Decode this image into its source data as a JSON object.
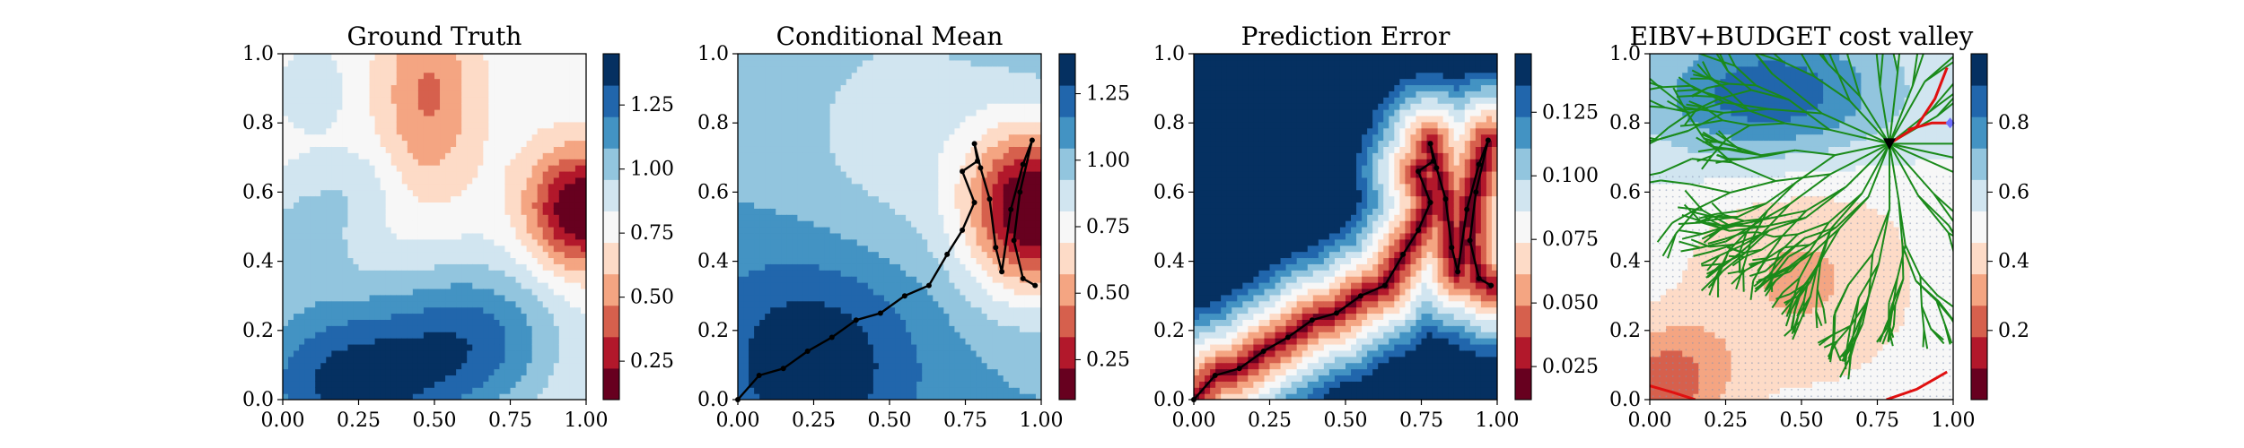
{
  "colors": {
    "rdbu_11": [
      "#67001f",
      "#b2182b",
      "#d6604d",
      "#f4a582",
      "#fddbc7",
      "#f7f7f7",
      "#d1e5f0",
      "#92c5de",
      "#4393c3",
      "#2166ac",
      "#053061"
    ],
    "path": "#000000",
    "tree": "#1a8a1a",
    "boundary": "#e01010",
    "candidate": "#7070ff"
  },
  "chart_data": [
    {
      "type": "heatmap",
      "title": "Ground Truth",
      "xlabel": "",
      "ylabel": "",
      "xlim": [
        0,
        1
      ],
      "ylim": [
        0,
        1
      ],
      "xticks": [
        "0.00",
        "0.25",
        "0.50",
        "0.75",
        "1.00"
      ],
      "yticks": [
        "0.0",
        "0.2",
        "0.4",
        "0.6",
        "0.8",
        "1.0"
      ],
      "field": [
        {
          "kind": "base",
          "value": 0.78
        },
        {
          "kind": "bump",
          "x": 0.98,
          "y": 0.55,
          "sx": 0.12,
          "sy": 0.12,
          "amp": -0.72
        },
        {
          "kind": "bump",
          "x": 0.48,
          "y": 0.88,
          "sx": 0.11,
          "sy": 0.2,
          "amp": -0.33
        },
        {
          "kind": "bump",
          "x": 0.22,
          "y": 0.05,
          "sx": 0.26,
          "sy": 0.18,
          "amp": 0.6
        },
        {
          "kind": "bump",
          "x": 0.65,
          "y": 0.18,
          "sx": 0.2,
          "sy": 0.16,
          "amp": 0.4
        },
        {
          "kind": "bump",
          "x": 0.07,
          "y": 0.48,
          "sx": 0.12,
          "sy": 0.12,
          "amp": 0.22
        },
        {
          "kind": "bump",
          "x": 0.25,
          "y": 0.62,
          "sx": 0.1,
          "sy": 0.08,
          "amp": 0.12
        },
        {
          "kind": "bump",
          "x": 0.1,
          "y": 0.9,
          "sx": 0.08,
          "sy": 0.08,
          "amp": 0.15
        }
      ],
      "colorbar": {
        "cmap": "rdbu_11",
        "vmin": 0.1,
        "vmax": 1.45,
        "ticks": [
          {
            "value": 0.25,
            "label": "0.25"
          },
          {
            "value": 0.5,
            "label": "0.50"
          },
          {
            "value": 0.75,
            "label": "0.75"
          },
          {
            "value": 1.0,
            "label": "1.00"
          },
          {
            "value": 1.25,
            "label": "1.25"
          }
        ]
      }
    },
    {
      "type": "heatmap",
      "title": "Conditional Mean",
      "xlabel": "",
      "ylabel": "",
      "xlim": [
        0,
        1
      ],
      "ylim": [
        0,
        1
      ],
      "xticks": [
        "0.00",
        "0.25",
        "0.50",
        "0.75",
        "1.00"
      ],
      "yticks": [
        "0.0",
        "0.2",
        "0.4",
        "0.6",
        "0.8",
        "1.0"
      ],
      "field": [
        {
          "kind": "base",
          "value": 1.05
        },
        {
          "kind": "bump",
          "x": 0.97,
          "y": 0.55,
          "sx": 0.15,
          "sy": 0.17,
          "amp": -0.95
        },
        {
          "kind": "bump",
          "x": 0.25,
          "y": 0.12,
          "sx": 0.25,
          "sy": 0.22,
          "amp": 0.35
        },
        {
          "kind": "bump",
          "x": 0.55,
          "y": 0.75,
          "sx": 0.3,
          "sy": 0.3,
          "amp": -0.18
        }
      ],
      "path": [
        [
          0.0,
          0.0
        ],
        [
          0.07,
          0.07
        ],
        [
          0.15,
          0.09
        ],
        [
          0.23,
          0.14
        ],
        [
          0.31,
          0.18
        ],
        [
          0.39,
          0.23
        ],
        [
          0.47,
          0.25
        ],
        [
          0.55,
          0.3
        ],
        [
          0.63,
          0.33
        ],
        [
          0.69,
          0.42
        ],
        [
          0.74,
          0.49
        ],
        [
          0.78,
          0.57
        ],
        [
          0.74,
          0.66
        ],
        [
          0.79,
          0.69
        ],
        [
          0.78,
          0.74
        ],
        [
          0.8,
          0.67
        ],
        [
          0.83,
          0.58
        ],
        [
          0.85,
          0.44
        ],
        [
          0.87,
          0.37
        ],
        [
          0.9,
          0.55
        ],
        [
          0.94,
          0.68
        ],
        [
          0.97,
          0.75
        ],
        [
          0.93,
          0.6
        ],
        [
          0.91,
          0.46
        ],
        [
          0.94,
          0.35
        ],
        [
          0.98,
          0.33
        ]
      ],
      "colorbar": {
        "cmap": "rdbu_11",
        "vmin": 0.1,
        "vmax": 1.4,
        "ticks": [
          {
            "value": 0.25,
            "label": "0.25"
          },
          {
            "value": 0.5,
            "label": "0.50"
          },
          {
            "value": 0.75,
            "label": "0.75"
          },
          {
            "value": 1.0,
            "label": "1.00"
          },
          {
            "value": 1.25,
            "label": "1.25"
          }
        ]
      }
    },
    {
      "type": "heatmap",
      "title": "Prediction Error",
      "xlabel": "",
      "ylabel": "",
      "xlim": [
        0,
        1
      ],
      "ylim": [
        0,
        1
      ],
      "xticks": [
        "0.00",
        "0.25",
        "0.50",
        "0.75",
        "1.00"
      ],
      "yticks": [
        "0.0",
        "0.2",
        "0.4",
        "0.6",
        "0.8",
        "1.0"
      ],
      "field": [
        {
          "kind": "pathdist",
          "vmin_out": 0.014,
          "vmax_out": 0.148,
          "scale": 0.23
        }
      ],
      "path": [
        [
          0.0,
          0.0
        ],
        [
          0.07,
          0.07
        ],
        [
          0.15,
          0.09
        ],
        [
          0.23,
          0.14
        ],
        [
          0.31,
          0.18
        ],
        [
          0.39,
          0.23
        ],
        [
          0.47,
          0.25
        ],
        [
          0.55,
          0.3
        ],
        [
          0.63,
          0.33
        ],
        [
          0.69,
          0.42
        ],
        [
          0.74,
          0.49
        ],
        [
          0.78,
          0.57
        ],
        [
          0.74,
          0.66
        ],
        [
          0.79,
          0.69
        ],
        [
          0.78,
          0.74
        ],
        [
          0.8,
          0.67
        ],
        [
          0.83,
          0.58
        ],
        [
          0.85,
          0.44
        ],
        [
          0.87,
          0.37
        ],
        [
          0.9,
          0.55
        ],
        [
          0.94,
          0.68
        ],
        [
          0.97,
          0.75
        ],
        [
          0.93,
          0.6
        ],
        [
          0.91,
          0.46
        ],
        [
          0.94,
          0.35
        ],
        [
          0.98,
          0.33
        ]
      ],
      "colorbar": {
        "cmap": "rdbu_11",
        "vmin": 0.012,
        "vmax": 0.148,
        "ticks": [
          {
            "value": 0.025,
            "label": "0.025"
          },
          {
            "value": 0.05,
            "label": "0.050"
          },
          {
            "value": 0.075,
            "label": "0.075"
          },
          {
            "value": 0.1,
            "label": "0.100"
          },
          {
            "value": 0.125,
            "label": "0.125"
          }
        ]
      }
    },
    {
      "type": "heatmap",
      "title": "EIBV+BUDGET cost valley",
      "xlabel": "",
      "ylabel": "",
      "xlim": [
        0,
        1
      ],
      "ylim": [
        0,
        1
      ],
      "xticks": [
        "0.00",
        "0.25",
        "0.50",
        "0.75",
        "1.00"
      ],
      "yticks": [
        "0.0",
        "0.2",
        "0.4",
        "0.6",
        "0.8",
        "1.0"
      ],
      "field": [
        {
          "kind": "base",
          "value": 0.55
        },
        {
          "kind": "bump",
          "x": 0.4,
          "y": 0.88,
          "sx": 0.28,
          "sy": 0.14,
          "amp": 0.35
        },
        {
          "kind": "bump",
          "x": 0.5,
          "y": 0.35,
          "sx": 0.3,
          "sy": 0.25,
          "amp": -0.2
        },
        {
          "kind": "bump",
          "x": 0.05,
          "y": 0.05,
          "sx": 0.15,
          "sy": 0.12,
          "amp": -0.3
        }
      ],
      "current_location": [
        0.79,
        0.74
      ],
      "candidate_location": [
        0.99,
        0.8
      ],
      "tree_seed": 7,
      "colorbar": {
        "cmap": "rdbu_11",
        "vmin": 0.0,
        "vmax": 1.0,
        "ticks": [
          {
            "value": 0.2,
            "label": "0.2"
          },
          {
            "value": 0.4,
            "label": "0.4"
          },
          {
            "value": 0.6,
            "label": "0.6"
          },
          {
            "value": 0.8,
            "label": "0.8"
          }
        ]
      }
    }
  ]
}
